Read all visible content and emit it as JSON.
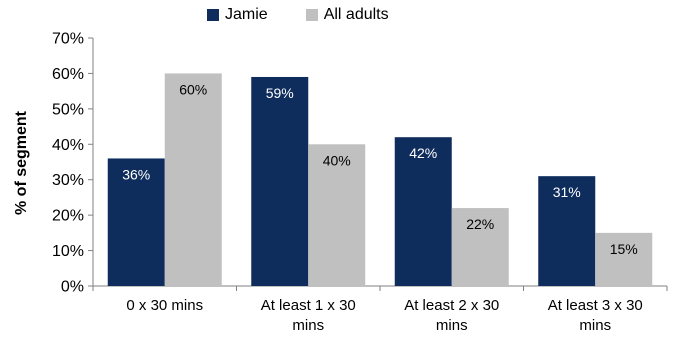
{
  "chart_data": {
    "type": "bar",
    "categories": [
      [
        "0 x 30 mins"
      ],
      [
        "At least 1 x 30",
        "mins"
      ],
      [
        "At least 2 x 30",
        "mins"
      ],
      [
        "At least 3 x 30",
        "mins"
      ]
    ],
    "series": [
      {
        "name": "Jamie",
        "values": [
          36,
          59,
          42,
          31
        ],
        "labels": [
          "36%",
          "59%",
          "42%",
          "31%"
        ],
        "label_color": "#ffffff"
      },
      {
        "name": "All adults",
        "values": [
          60,
          40,
          22,
          15
        ],
        "labels": [
          "60%",
          "40%",
          "22%",
          "15%"
        ],
        "label_color": "#000000"
      }
    ],
    "ylabel": "% of segment",
    "xlabel": "",
    "ylim": [
      0,
      70
    ],
    "yticks": [
      "0%",
      "10%",
      "20%",
      "30%",
      "40%",
      "50%",
      "60%",
      "70%"
    ],
    "grid": false,
    "legend_position": "top"
  },
  "colors": {
    "Jamie": "#0e2d5c",
    "All adults": "#c0c0c0",
    "axis": "#808080"
  }
}
